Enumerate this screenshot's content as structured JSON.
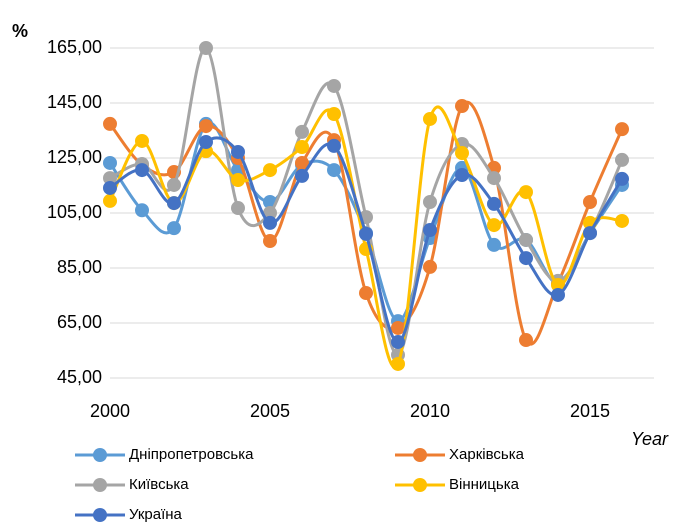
{
  "chart_data": {
    "type": "line",
    "y_label": "%",
    "x_label": "Year",
    "x": [
      2000,
      2001,
      2002,
      2003,
      2004,
      2005,
      2006,
      2007,
      2008,
      2009,
      2010,
      2011,
      2012,
      2013,
      2014,
      2015,
      2016
    ],
    "xlim": [
      2000,
      2017
    ],
    "xticks": [
      2000,
      2005,
      2010,
      2015
    ],
    "ylim": [
      45,
      165
    ],
    "yticks": [
      {
        "value": 45,
        "label": "45,00"
      },
      {
        "value": 65,
        "label": "65,00"
      },
      {
        "value": 85,
        "label": "85,00"
      },
      {
        "value": 105,
        "label": "105,00"
      },
      {
        "value": 125,
        "label": "125,00"
      },
      {
        "value": 145,
        "label": "145,00"
      },
      {
        "value": 165,
        "label": "165,00"
      }
    ],
    "grid": true,
    "smooth": true,
    "legend": "bottom",
    "series": [
      {
        "name": "Дніпропетровська",
        "color": "#5b9bd5",
        "values": [
          123.2,
          106,
          99.5,
          137.4,
          120.6,
          109,
          122.5,
          120.6,
          97.7,
          65.7,
          95.9,
          121.4,
          93.4,
          95.2,
          79.5,
          97.7,
          115.2
        ]
      },
      {
        "name": "Харківська",
        "color": "#ed7d31",
        "values": [
          137.4,
          122.5,
          119.9,
          136.6,
          125,
          94.8,
          123.2,
          131.5,
          75.9,
          63.2,
          85.4,
          143.9,
          121.4,
          58.8,
          79.5,
          109,
          135.5
        ]
      },
      {
        "name": "Київська",
        "color": "#a5a5a5",
        "values": [
          117.7,
          122.8,
          115.2,
          165,
          106.8,
          105,
          134.5,
          151.2,
          103.5,
          53.4,
          109,
          130.1,
          117.7,
          95.2,
          80.3,
          97.7,
          124.3
        ]
      },
      {
        "name": "Вінницька",
        "color": "#ffc000",
        "values": [
          109.4,
          131.2,
          108.6,
          127.5,
          117,
          120.6,
          129,
          141,
          91.9,
          50.1,
          139.2,
          126.8,
          100.6,
          112.6,
          78.8,
          101.4,
          102.1
        ]
      },
      {
        "name": "Україна",
        "color": "#4472c4",
        "values": [
          114.1,
          120.6,
          108.6,
          130.8,
          127.2,
          101.4,
          118.5,
          129.4,
          97.4,
          58.1,
          98.8,
          118.8,
          108.3,
          88.6,
          75.2,
          97.7,
          117.4
        ]
      }
    ]
  }
}
